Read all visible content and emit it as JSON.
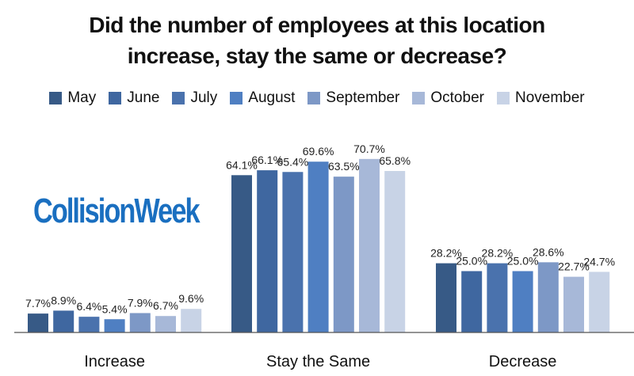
{
  "chart_data": {
    "type": "bar",
    "title": "Did the number of employees at this location increase, stay the same or decrease?",
    "title_lines": [
      "Did the number of employees at this location",
      "increase, stay the same or decrease?"
    ],
    "categories": [
      "Increase",
      "Stay the Same",
      "Decrease"
    ],
    "series": [
      {
        "name": "May",
        "color": "#375a86",
        "values": [
          7.7,
          64.1,
          28.2
        ],
        "labels": [
          "7.7%",
          "64.1%",
          "28.2%"
        ]
      },
      {
        "name": "June",
        "color": "#3f67a0",
        "values": [
          8.9,
          66.1,
          25.0
        ],
        "labels": [
          "8.9%",
          "66.1%",
          "25.0%"
        ]
      },
      {
        "name": "July",
        "color": "#4a72ad",
        "values": [
          6.4,
          65.4,
          28.2
        ],
        "labels": [
          "6.4%",
          "65.4%",
          "28.2%"
        ]
      },
      {
        "name": "August",
        "color": "#4f7fc2",
        "values": [
          5.4,
          69.6,
          25.0
        ],
        "labels": [
          "5.4%",
          "69.6%",
          "25.0%"
        ]
      },
      {
        "name": "September",
        "color": "#7d98c6",
        "values": [
          7.9,
          63.5,
          28.6
        ],
        "labels": [
          "7.9%",
          "63.5%",
          "28.6%"
        ]
      },
      {
        "name": "October",
        "color": "#a7b8d8",
        "values": [
          6.7,
          70.7,
          22.7
        ],
        "labels": [
          "6.7%",
          "70.7%",
          "22.7%"
        ]
      },
      {
        "name": "November",
        "color": "#c8d3e6",
        "values": [
          9.6,
          65.8,
          24.7
        ],
        "labels": [
          "9.6%",
          "65.8%",
          "24.7%"
        ]
      }
    ],
    "ylim": [
      0,
      100
    ],
    "grid": false,
    "legend_position": "top"
  },
  "logo_text": "CollisionWeek"
}
